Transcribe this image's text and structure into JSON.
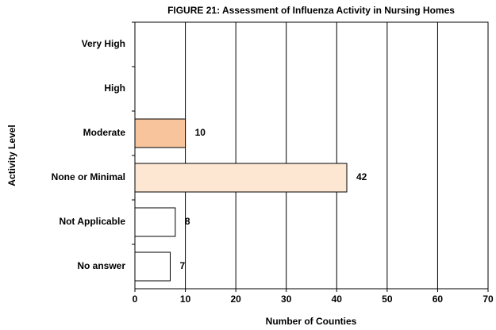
{
  "chart_data": {
    "type": "hbar",
    "title": "FIGURE 21: Assessment of Influenza Activity in Nursing Homes",
    "x_label": "Number of Counties",
    "y_label": "Activity Level",
    "categories": [
      "Very High",
      "High",
      "Moderate",
      "None or Minimal",
      "Not Applicable",
      "No answer"
    ],
    "values": [
      null,
      null,
      10,
      42,
      8,
      7
    ],
    "colors": [
      "#ffffff",
      "#ffffff",
      "#f7c49c",
      "#fde6d2",
      "#ffffff",
      "#ffffff"
    ],
    "xlim": [
      0,
      70
    ],
    "xticks": [
      0,
      10,
      20,
      30,
      40,
      50,
      60,
      70
    ],
    "grid": true
  }
}
